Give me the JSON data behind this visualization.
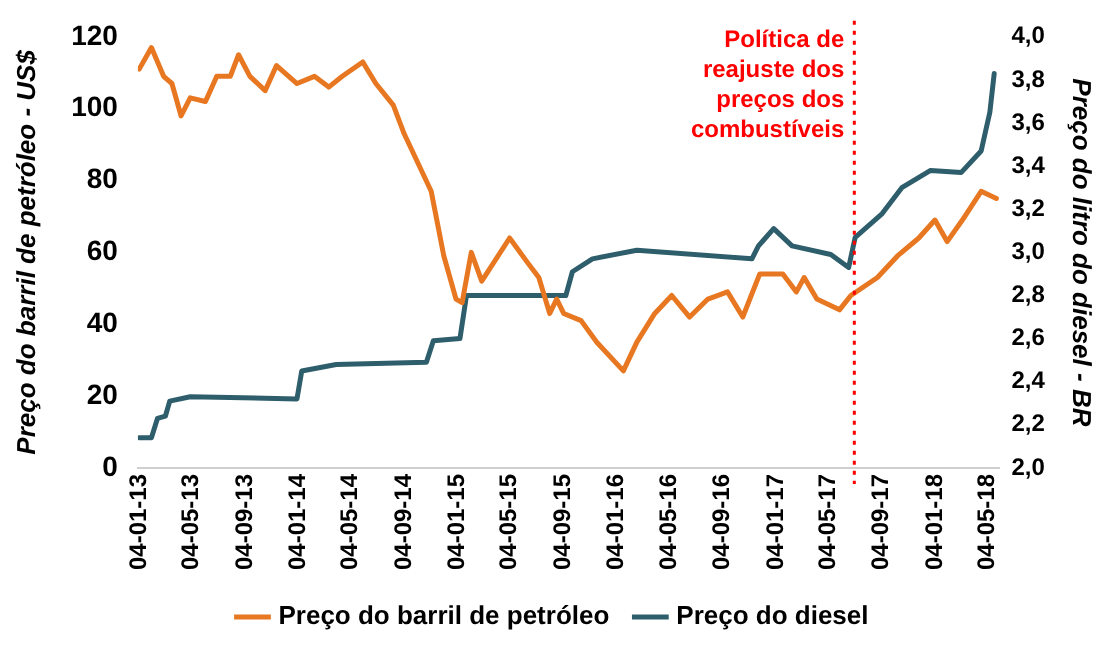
{
  "chart_data": {
    "type": "line",
    "ylabel": "Preço do barril de petróleo - US$",
    "y2label": "Preço do litro do diesel - BR",
    "xlim": [
      "2013-01-01",
      "2018-06-01"
    ],
    "xticks": [
      {
        "value": "2013-01-04",
        "label": "04-01-13"
      },
      {
        "value": "2013-05-04",
        "label": "04-05-13"
      },
      {
        "value": "2013-09-04",
        "label": "04-09-13"
      },
      {
        "value": "2014-01-04",
        "label": "04-01-14"
      },
      {
        "value": "2014-05-04",
        "label": "04-05-14"
      },
      {
        "value": "2014-09-04",
        "label": "04-09-14"
      },
      {
        "value": "2015-01-04",
        "label": "04-01-15"
      },
      {
        "value": "2015-05-04",
        "label": "04-05-15"
      },
      {
        "value": "2015-09-04",
        "label": "04-09-15"
      },
      {
        "value": "2016-01-04",
        "label": "04-01-16"
      },
      {
        "value": "2016-05-04",
        "label": "04-05-16"
      },
      {
        "value": "2016-09-04",
        "label": "04-09-16"
      },
      {
        "value": "2017-01-04",
        "label": "04-01-17"
      },
      {
        "value": "2017-05-04",
        "label": "04-05-17"
      },
      {
        "value": "2017-09-04",
        "label": "04-09-17"
      },
      {
        "value": "2018-01-04",
        "label": "04-01-18"
      },
      {
        "value": "2018-05-04",
        "label": "04-05-18"
      }
    ],
    "ylim": [
      0,
      120
    ],
    "yticks": [
      0,
      20,
      40,
      60,
      80,
      100,
      120
    ],
    "y2lim": [
      2,
      4
    ],
    "y2ticks": [
      {
        "value": 2,
        "label": "2,0"
      },
      {
        "value": 2.2,
        "label": "2,2"
      },
      {
        "value": 2.4,
        "label": "2,4"
      },
      {
        "value": 2.6,
        "label": "2,6"
      },
      {
        "value": 2.8,
        "label": "2,8"
      },
      {
        "value": 3,
        "label": "3,0"
      },
      {
        "value": 3.2,
        "label": "3,2"
      },
      {
        "value": 3.4,
        "label": "3,4"
      },
      {
        "value": 3.6,
        "label": "3,6"
      },
      {
        "value": 3.8,
        "label": "3,8"
      },
      {
        "value": 4,
        "label": "4,0"
      }
    ],
    "series": [
      {
        "name": "Preço do barril de petróleo",
        "color": "#e87722",
        "x": [
          "2013-01-04",
          "2013-02-01",
          "2013-03-01",
          "2013-03-20",
          "2013-04-10",
          "2013-05-01",
          "2013-06-05",
          "2013-07-01",
          "2013-08-01",
          "2013-08-20",
          "2013-09-15",
          "2013-10-20",
          "2013-11-15",
          "2014-01-01",
          "2014-02-10",
          "2014-03-15",
          "2014-04-15",
          "2014-06-01",
          "2014-07-01",
          "2014-08-10",
          "2014-09-04",
          "2014-10-05",
          "2014-11-05",
          "2014-12-04",
          "2015-01-01",
          "2015-01-15",
          "2015-02-05",
          "2015-03-01",
          "2015-05-04",
          "2015-06-15",
          "2015-07-10",
          "2015-08-04",
          "2015-08-20",
          "2015-09-05",
          "2015-10-15",
          "2015-11-20",
          "2016-01-20",
          "2016-02-20",
          "2016-04-01",
          "2016-05-10",
          "2016-06-20",
          "2016-08-01",
          "2016-09-15",
          "2016-10-20",
          "2016-11-28",
          "2017-01-20",
          "2017-02-20",
          "2017-03-10",
          "2017-04-08",
          "2017-05-30",
          "2017-06-25",
          "2017-08-25",
          "2017-10-10",
          "2017-11-28",
          "2018-01-04",
          "2018-02-01",
          "2018-03-08",
          "2018-04-20",
          "2018-05-25"
        ],
        "values": [
          111,
          117,
          109,
          107,
          98,
          103,
          102,
          109,
          109,
          115,
          109,
          105,
          112,
          107,
          109,
          106,
          109,
          113,
          107,
          101,
          93,
          85,
          77,
          59,
          47,
          46,
          60,
          52,
          64,
          57,
          53,
          43,
          47,
          43,
          41,
          35,
          27,
          35,
          43,
          48,
          42,
          47,
          49,
          42,
          54,
          54,
          49,
          53,
          47,
          44,
          48,
          53,
          59,
          64,
          69,
          63,
          69,
          77,
          75
        ]
      },
      {
        "name": "Preço do diesel",
        "color": "#2e5e6b",
        "axis": "y2",
        "x": [
          "2013-01-04",
          "2013-02-01",
          "2013-02-15",
          "2013-03-05",
          "2013-03-15",
          "2013-05-01",
          "2014-01-01",
          "2014-01-12",
          "2014-04-01",
          "2014-10-25",
          "2014-11-10",
          "2015-01-10",
          "2015-01-25",
          "2015-09-10",
          "2015-09-25",
          "2015-11-10",
          "2016-02-20",
          "2016-11-10",
          "2016-11-25",
          "2016-12-30",
          "2017-02-10",
          "2017-05-10",
          "2017-06-20",
          "2017-07-05",
          "2017-09-05",
          "2017-10-20",
          "2017-12-25",
          "2018-03-05",
          "2018-04-20",
          "2018-05-10",
          "2018-05-20"
        ],
        "values": [
          2.14,
          2.14,
          2.23,
          2.24,
          2.31,
          2.33,
          2.32,
          2.45,
          2.48,
          2.49,
          2.59,
          2.6,
          2.8,
          2.8,
          2.91,
          2.97,
          3.01,
          2.97,
          3.03,
          3.11,
          3.03,
          2.99,
          2.93,
          3.07,
          3.18,
          3.3,
          3.38,
          3.37,
          3.47,
          3.65,
          3.83
        ]
      }
    ],
    "ref_lines": [
      {
        "axis": "x",
        "value": "2017-07-03",
        "label": "Política de reajuste dos preços dos combustíveis",
        "color": "#ff0000",
        "line_style": "dotted"
      }
    ],
    "legend": "bottom",
    "grid": false,
    "marker": "none",
    "line_style": "solid"
  }
}
